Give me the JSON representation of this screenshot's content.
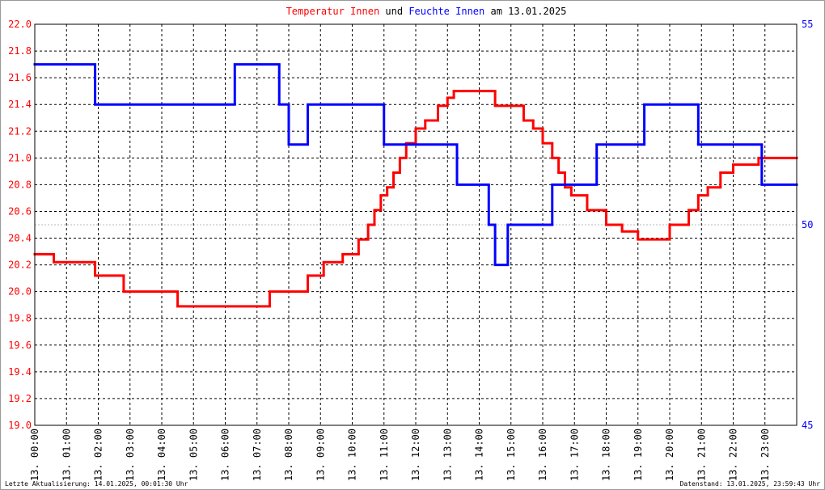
{
  "chart_data": {
    "type": "line",
    "title_parts": [
      "Temperatur Innen",
      "und",
      "Feuchte Innen",
      "am 13.01.2025"
    ],
    "footer_left": "Letzte Aktualisierung: 14.01.2025, 00:01:30 Uhr",
    "footer_right": "Datenstand: 13.01.2025, 23:59:43 Uhr",
    "xlim": [
      0,
      24
    ],
    "xticks": [
      {
        "value": 0,
        "label": "13. 00:00"
      },
      {
        "value": 1,
        "label": "13. 01:00"
      },
      {
        "value": 2,
        "label": "13. 02:00"
      },
      {
        "value": 3,
        "label": "13. 03:00"
      },
      {
        "value": 4,
        "label": "13. 04:00"
      },
      {
        "value": 5,
        "label": "13. 05:00"
      },
      {
        "value": 6,
        "label": "13. 06:00"
      },
      {
        "value": 7,
        "label": "13. 07:00"
      },
      {
        "value": 8,
        "label": "13. 08:00"
      },
      {
        "value": 9,
        "label": "13. 09:00"
      },
      {
        "value": 10,
        "label": "13. 10:00"
      },
      {
        "value": 11,
        "label": "13. 11:00"
      },
      {
        "value": 12,
        "label": "13. 12:00"
      },
      {
        "value": 13,
        "label": "13. 13:00"
      },
      {
        "value": 14,
        "label": "13. 14:00"
      },
      {
        "value": 15,
        "label": "13. 15:00"
      },
      {
        "value": 16,
        "label": "13. 16:00"
      },
      {
        "value": 17,
        "label": "13. 17:00"
      },
      {
        "value": 18,
        "label": "13. 18:00"
      },
      {
        "value": 19,
        "label": "13. 19:00"
      },
      {
        "value": 20,
        "label": "13. 20:00"
      },
      {
        "value": 21,
        "label": "13. 21:00"
      },
      {
        "value": 22,
        "label": "13. 22:00"
      },
      {
        "value": 23,
        "label": "13. 23:00"
      }
    ],
    "ylim": [
      19,
      22
    ],
    "yticks": [
      {
        "value": 19,
        "label": "19.0"
      },
      19.2,
      19.4,
      19.6,
      19.8,
      {
        "value": 20,
        "label": "20.0"
      },
      20.2,
      20.4,
      20.6,
      20.8,
      {
        "value": 21,
        "label": "21.0"
      },
      21.2,
      21.4,
      21.6,
      21.8,
      {
        "value": 22,
        "label": "22.0"
      }
    ],
    "y2lim": [
      45,
      55
    ],
    "y2ticks": [
      45,
      50,
      55
    ],
    "grid": true,
    "series": [
      {
        "name": "Temperatur Innen",
        "color": "#ff0000",
        "axis": "y",
        "x": [
          0,
          0.6,
          1.9,
          2.8,
          4.5,
          7.4,
          8.6,
          9.1,
          9.7,
          10.2,
          10.5,
          10.7,
          10.9,
          11.1,
          11.3,
          11.5,
          11.7,
          12.0,
          12.3,
          12.7,
          13.0,
          13.2,
          14.5,
          15.4,
          15.7,
          16.0,
          16.3,
          16.5,
          16.7,
          16.9,
          17.4,
          18.0,
          18.5,
          19.0,
          20.0,
          20.6,
          20.9,
          21.2,
          21.6,
          22.0,
          22.8
        ],
        "values": [
          20.28,
          20.22,
          20.12,
          20.0,
          19.89,
          20.0,
          20.12,
          20.22,
          20.28,
          20.39,
          20.5,
          20.61,
          20.72,
          20.78,
          20.89,
          21.0,
          21.11,
          21.22,
          21.28,
          21.39,
          21.45,
          21.5,
          21.39,
          21.28,
          21.22,
          21.11,
          21.0,
          20.89,
          20.78,
          20.72,
          20.61,
          20.5,
          20.45,
          20.39,
          20.5,
          20.61,
          20.72,
          20.78,
          20.89,
          20.95,
          21.0
        ]
      },
      {
        "name": "Feuchte Innen",
        "color": "#0000ff",
        "axis": "y2",
        "x": [
          0,
          1.9,
          6.3,
          7.7,
          8.0,
          8.6,
          11.0,
          13.3,
          14.3,
          14.5,
          14.9,
          16.3,
          17.7,
          19.2,
          20.9,
          22.9
        ],
        "values": [
          54,
          53,
          54,
          53,
          52,
          53,
          52,
          51,
          50,
          49,
          50,
          51,
          52,
          53,
          52,
          51
        ]
      }
    ]
  }
}
